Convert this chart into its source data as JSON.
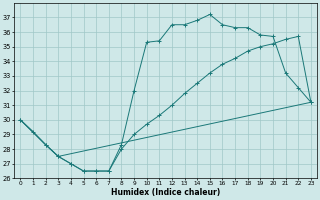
{
  "xlabel": "Humidex (Indice chaleur)",
  "bg_color": "#cfe8e8",
  "grid_color": "#a0c8c8",
  "line_color": "#1a7878",
  "curve1_x": [
    0,
    1,
    2,
    3,
    4,
    5,
    6,
    7,
    8,
    9,
    10,
    11,
    12,
    13,
    14,
    15,
    16,
    17,
    18,
    19,
    20,
    21,
    22,
    23
  ],
  "curve1_y": [
    30.0,
    29.2,
    28.3,
    27.5,
    27.0,
    26.5,
    26.5,
    26.5,
    28.3,
    32.0,
    35.3,
    35.4,
    36.5,
    36.5,
    36.8,
    37.2,
    36.5,
    36.3,
    36.3,
    35.8,
    35.7,
    33.2,
    32.2,
    31.2
  ],
  "curve2_x": [
    0,
    2,
    3,
    23
  ],
  "curve2_y": [
    30.0,
    28.3,
    27.5,
    31.2
  ],
  "curve3_x": [
    0,
    2,
    3,
    4,
    5,
    6,
    7,
    8,
    9,
    10,
    11,
    12,
    13,
    14,
    15,
    16,
    17,
    18,
    19,
    20,
    21,
    22,
    23
  ],
  "curve3_y": [
    30.0,
    28.3,
    27.5,
    27.0,
    26.5,
    26.5,
    26.5,
    28.0,
    29.0,
    29.7,
    30.3,
    31.0,
    31.8,
    32.5,
    33.2,
    33.8,
    34.2,
    34.7,
    35.0,
    35.2,
    35.5,
    35.7,
    31.2
  ],
  "ylim": [
    26,
    38
  ],
  "xlim": [
    -0.5,
    23.5
  ],
  "yticks": [
    26,
    27,
    28,
    29,
    30,
    31,
    32,
    33,
    34,
    35,
    36,
    37
  ],
  "xticks": [
    0,
    1,
    2,
    3,
    4,
    5,
    6,
    7,
    8,
    9,
    10,
    11,
    12,
    13,
    14,
    15,
    16,
    17,
    18,
    19,
    20,
    21,
    22,
    23
  ]
}
